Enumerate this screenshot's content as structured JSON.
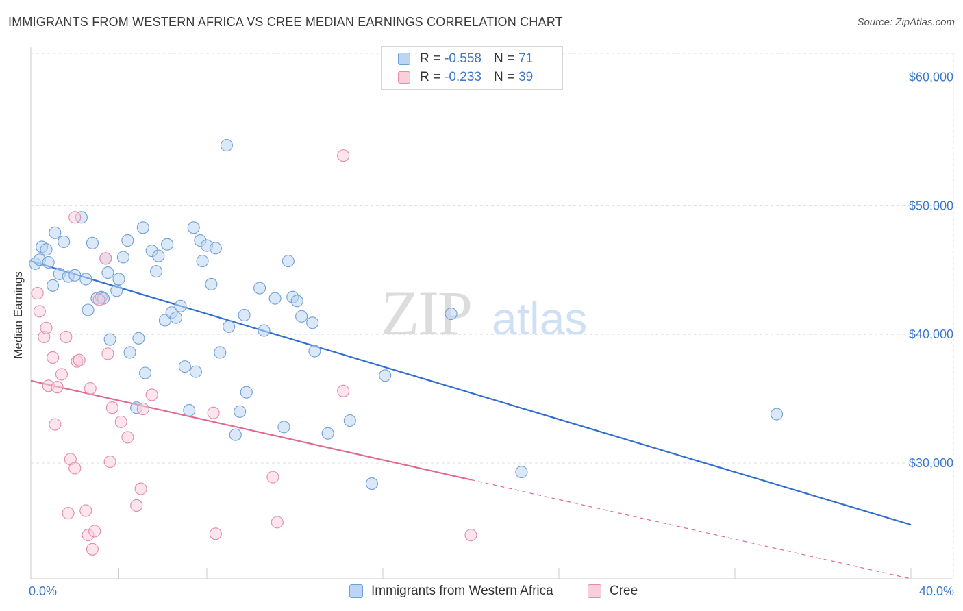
{
  "header": {
    "title": "IMMIGRANTS FROM WESTERN AFRICA VS CREE MEDIAN EARNINGS CORRELATION CHART",
    "source": "Source: ZipAtlas.com"
  },
  "watermark": {
    "zip": "ZIP",
    "atlas": "atlas"
  },
  "legend": {
    "rows": [
      {
        "r_label": "R =",
        "r_value": "-0.558",
        "n_label": "N =",
        "n_value": "71",
        "color": "#a9c8f0",
        "border": "#6f9fd8"
      },
      {
        "r_label": "R =",
        "r_value": "-0.233",
        "n_label": "N =",
        "n_value": "39",
        "color": "#f7c3d3",
        "border": "#e58aa8"
      }
    ]
  },
  "bottom_legend": {
    "series1": "Immigrants from Western Africa",
    "series2": "Cree"
  },
  "colors": {
    "blue_fill": "#bcd5f3",
    "blue_stroke": "#6f9fd8",
    "blue_line": "#2f6fd0",
    "pink_fill": "#f9cfdc",
    "pink_stroke": "#e58aa8",
    "pink_line": "#e06a93",
    "axis_text": "#3b78c8",
    "grid": "#dedede"
  },
  "chart_data": {
    "type": "scatter",
    "title": "IMMIGRANTS FROM WESTERN AFRICA VS CREE MEDIAN EARNINGS CORRELATION CHART",
    "xlabel": "",
    "ylabel": "Median Earnings",
    "xlim": [
      0,
      40
    ],
    "ylim": [
      21000,
      62000
    ],
    "x_tick_labels": [
      "0.0%",
      "40.0%"
    ],
    "y_ticks": [
      30000,
      40000,
      50000,
      60000
    ],
    "y_tick_labels": [
      "$30,000",
      "$40,000",
      "$50,000",
      "$60,000"
    ],
    "grid": true,
    "legend_placement": "top-center",
    "series": [
      {
        "name": "Immigrants from Western Africa",
        "color": "#6f9fd8",
        "points": [
          [
            0.2,
            45500
          ],
          [
            0.4,
            45800
          ],
          [
            0.5,
            46800
          ],
          [
            0.7,
            46600
          ],
          [
            0.8,
            45600
          ],
          [
            1.0,
            43800
          ],
          [
            1.1,
            47900
          ],
          [
            1.3,
            44700
          ],
          [
            1.5,
            47200
          ],
          [
            1.7,
            44500
          ],
          [
            2.0,
            44600
          ],
          [
            2.3,
            49100
          ],
          [
            2.5,
            44300
          ],
          [
            2.6,
            41900
          ],
          [
            2.8,
            47100
          ],
          [
            3.0,
            42800
          ],
          [
            3.2,
            42900
          ],
          [
            3.4,
            45900
          ],
          [
            3.5,
            44800
          ],
          [
            3.6,
            39600
          ],
          [
            3.9,
            43400
          ],
          [
            4.0,
            44300
          ],
          [
            4.2,
            46000
          ],
          [
            4.4,
            47300
          ],
          [
            4.5,
            38600
          ],
          [
            4.9,
            39700
          ],
          [
            5.1,
            48300
          ],
          [
            5.2,
            37000
          ],
          [
            5.5,
            46500
          ],
          [
            5.7,
            44900
          ],
          [
            5.8,
            46100
          ],
          [
            6.1,
            41100
          ],
          [
            6.2,
            47000
          ],
          [
            6.4,
            41700
          ],
          [
            6.6,
            41300
          ],
          [
            6.8,
            42200
          ],
          [
            7.0,
            37500
          ],
          [
            7.2,
            34100
          ],
          [
            7.4,
            48300
          ],
          [
            7.5,
            37100
          ],
          [
            7.7,
            47300
          ],
          [
            7.8,
            45700
          ],
          [
            8.0,
            46900
          ],
          [
            8.2,
            43900
          ],
          [
            8.4,
            46700
          ],
          [
            8.6,
            38600
          ],
          [
            8.9,
            54700
          ],
          [
            9.0,
            40600
          ],
          [
            9.3,
            32200
          ],
          [
            9.5,
            34000
          ],
          [
            9.7,
            41500
          ],
          [
            9.8,
            35500
          ],
          [
            10.4,
            43600
          ],
          [
            10.6,
            40300
          ],
          [
            11.1,
            42800
          ],
          [
            11.5,
            32800
          ],
          [
            11.7,
            45700
          ],
          [
            11.9,
            42900
          ],
          [
            12.1,
            42600
          ],
          [
            12.3,
            41400
          ],
          [
            12.8,
            40900
          ],
          [
            12.9,
            38700
          ],
          [
            13.5,
            32300
          ],
          [
            14.5,
            33300
          ],
          [
            15.5,
            28400
          ],
          [
            16.1,
            36800
          ],
          [
            19.1,
            41600
          ],
          [
            22.3,
            29300
          ],
          [
            33.9,
            33800
          ],
          [
            4.8,
            34300
          ],
          [
            3.3,
            42800
          ]
        ]
      },
      {
        "name": "Cree",
        "color": "#e58aa8",
        "points": [
          [
            0.3,
            43200
          ],
          [
            0.4,
            41800
          ],
          [
            0.6,
            39800
          ],
          [
            0.7,
            40500
          ],
          [
            0.8,
            36000
          ],
          [
            1.0,
            38200
          ],
          [
            1.1,
            33000
          ],
          [
            1.2,
            35900
          ],
          [
            1.4,
            36900
          ],
          [
            1.6,
            39800
          ],
          [
            1.8,
            30300
          ],
          [
            2.0,
            29600
          ],
          [
            2.1,
            37900
          ],
          [
            2.2,
            38000
          ],
          [
            2.5,
            26300
          ],
          [
            2.6,
            24400
          ],
          [
            2.7,
            35800
          ],
          [
            2.8,
            23300
          ],
          [
            2.9,
            24700
          ],
          [
            3.1,
            42700
          ],
          [
            3.4,
            45900
          ],
          [
            3.5,
            38500
          ],
          [
            3.6,
            30100
          ],
          [
            3.7,
            34300
          ],
          [
            4.1,
            33200
          ],
          [
            4.4,
            32000
          ],
          [
            4.8,
            26700
          ],
          [
            5.0,
            28000
          ],
          [
            5.1,
            34200
          ],
          [
            5.5,
            35300
          ],
          [
            8.3,
            33900
          ],
          [
            8.4,
            24500
          ],
          [
            11.0,
            28900
          ],
          [
            11.2,
            25400
          ],
          [
            14.2,
            53900
          ],
          [
            14.2,
            35600
          ],
          [
            20.0,
            24400
          ],
          [
            2.0,
            49100
          ],
          [
            1.7,
            26100
          ]
        ]
      }
    ],
    "trend_lines": [
      {
        "series": "Immigrants from Western Africa",
        "x": [
          0,
          40
        ],
        "y": [
          45700,
          25200
        ],
        "style": "solid"
      },
      {
        "series": "Cree",
        "x": [
          0,
          20
        ],
        "y": [
          36400,
          28700
        ],
        "style": "solid"
      },
      {
        "series": "Cree",
        "x": [
          20,
          40
        ],
        "y": [
          28700,
          21000
        ],
        "style": "dashed"
      }
    ]
  }
}
